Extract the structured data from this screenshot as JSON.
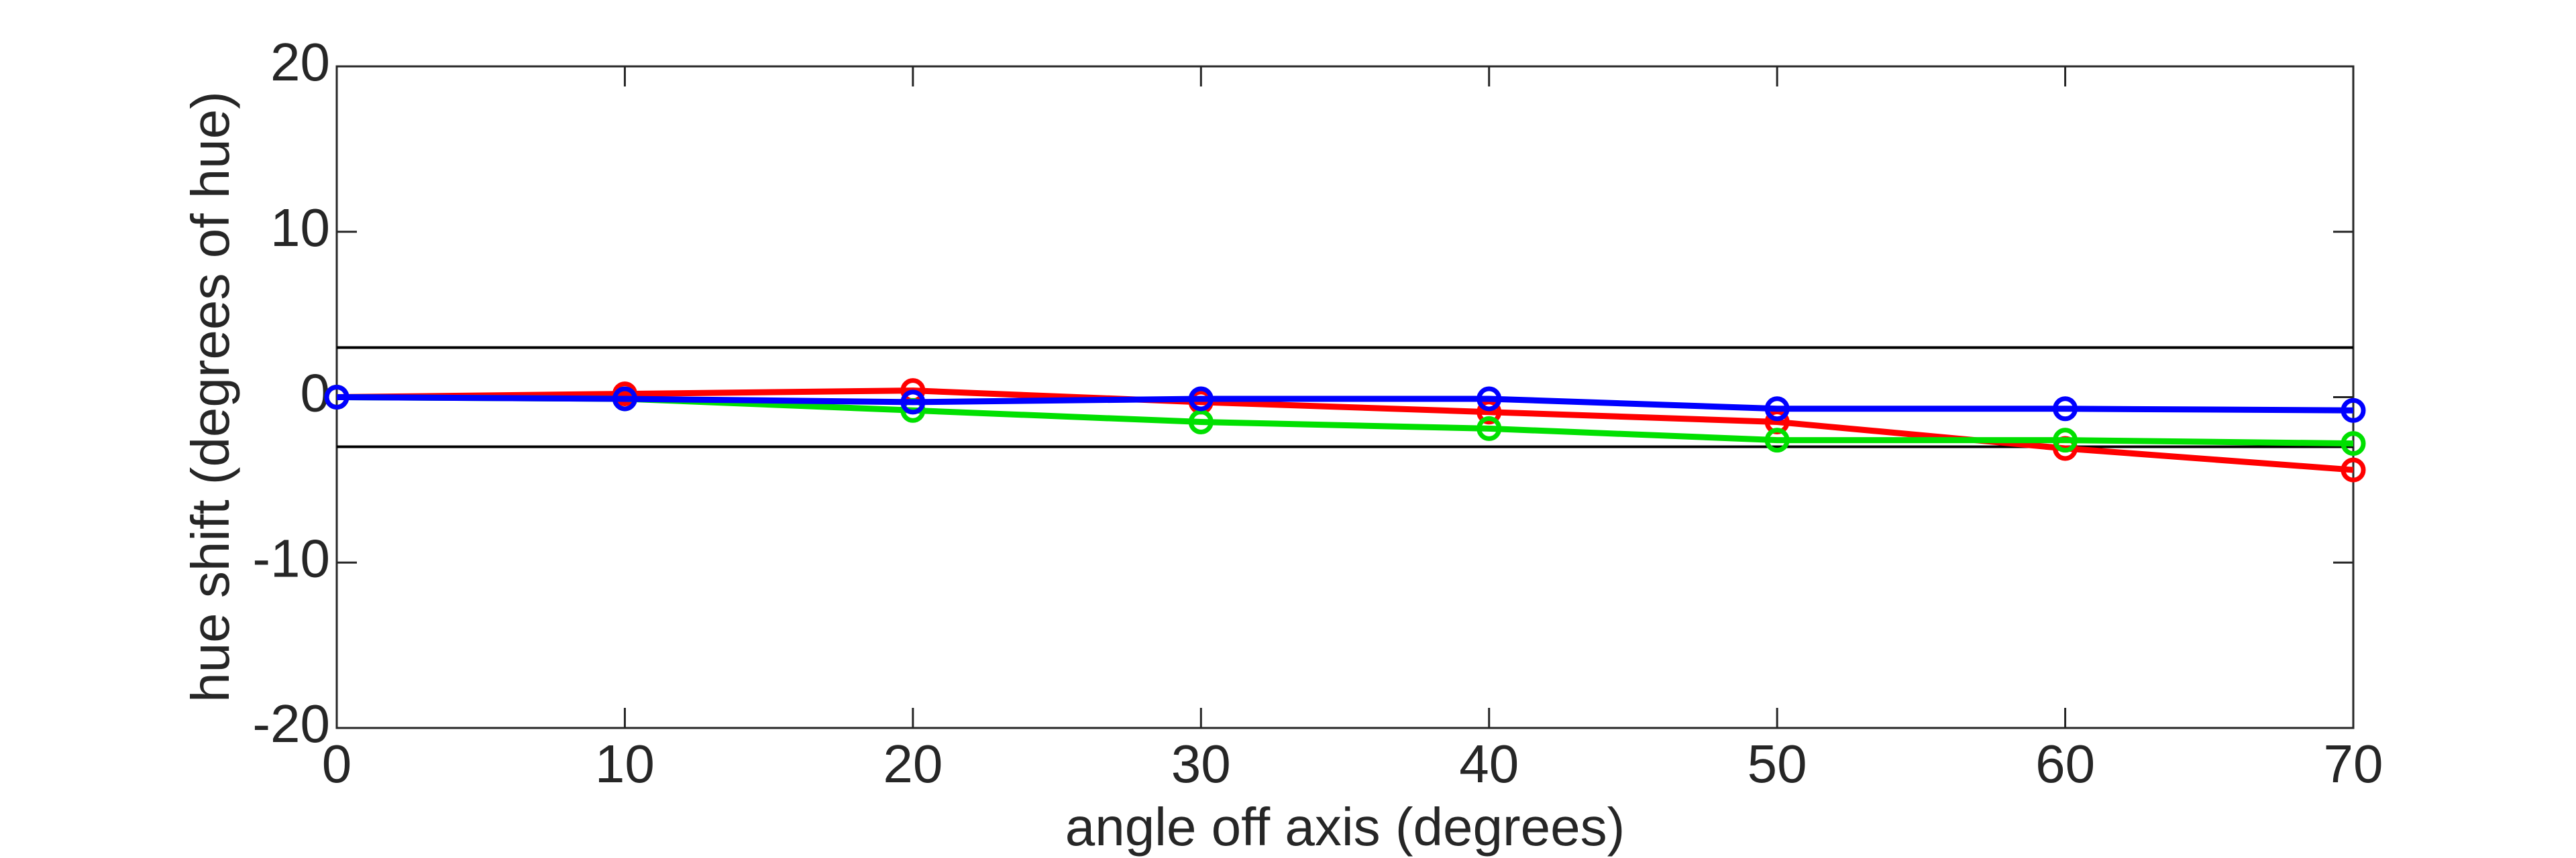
{
  "chart_data": {
    "type": "line",
    "xlabel": "angle off axis (degrees)",
    "ylabel": "hue shift (degrees of hue)",
    "x": [
      0,
      10,
      20,
      30,
      40,
      50,
      60,
      70
    ],
    "series": [
      {
        "color": "#ff0000",
        "values": [
          0,
          0.2,
          0.4,
          -0.3,
          -0.9,
          -1.5,
          -3.1,
          -4.4
        ]
      },
      {
        "color": "#00e000",
        "values": [
          0,
          -0.1,
          -0.8,
          -1.5,
          -1.9,
          -2.6,
          -2.6,
          -2.8
        ]
      },
      {
        "color": "#0000ff",
        "values": [
          0,
          -0.1,
          -0.3,
          -0.1,
          -0.1,
          -0.7,
          -0.7,
          -0.8
        ]
      }
    ],
    "reference_lines": [
      3,
      -3
    ],
    "xlim": [
      0,
      70
    ],
    "xticks": [
      0,
      10,
      20,
      30,
      40,
      50,
      60,
      70
    ],
    "ylim": [
      -20,
      20
    ],
    "yticks": [
      -20,
      -10,
      0,
      10,
      20
    ],
    "grid": false
  }
}
